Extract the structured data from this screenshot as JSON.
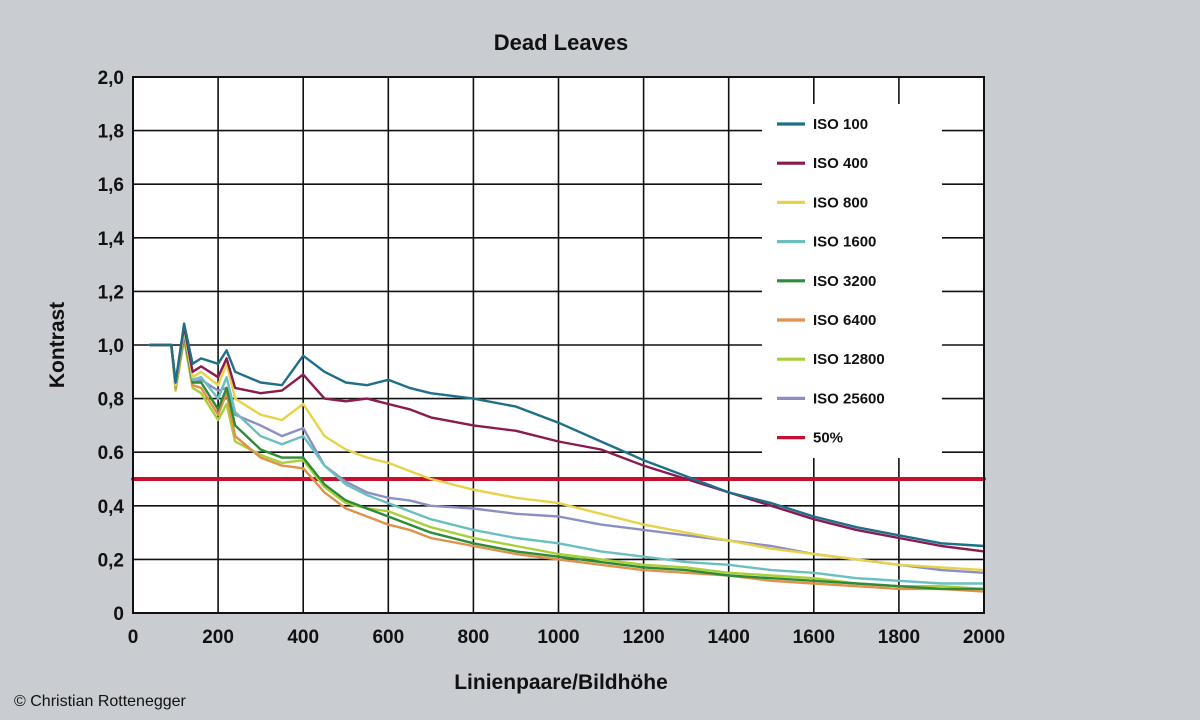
{
  "chart_data": {
    "type": "line",
    "title": "Dead Leaves",
    "xlabel": "Linienpaare/Bildhöhe",
    "ylabel": "Kontrast",
    "xlim": [
      0,
      2000
    ],
    "ylim": [
      0,
      2.0
    ],
    "x_ticks": [
      0,
      200,
      400,
      600,
      800,
      1000,
      1200,
      1400,
      1600,
      1800,
      2000
    ],
    "y_ticks": [
      0,
      0.2,
      0.4,
      0.6,
      0.8,
      1.0,
      1.2,
      1.4,
      1.6,
      1.8,
      2.0
    ],
    "x_tick_labels": [
      "0",
      "200",
      "400",
      "600",
      "800",
      "1000",
      "1200",
      "1400",
      "1600",
      "1800",
      "2000"
    ],
    "y_tick_labels": [
      "0",
      "0,2",
      "0,4",
      "0.6",
      "0,8",
      "1,0",
      "1,2",
      "1,4",
      "1,6",
      "1,8",
      "2,0"
    ],
    "grid": true,
    "legend_position": "top-right",
    "series": [
      {
        "name": "ISO 100",
        "color": "#1f6f8b",
        "x": [
          40,
          90,
          100,
          120,
          140,
          160,
          200,
          220,
          240,
          300,
          350,
          400,
          450,
          500,
          550,
          600,
          650,
          700,
          800,
          900,
          1000,
          1100,
          1200,
          1300,
          1400,
          1500,
          1600,
          1700,
          1800,
          1900,
          2000
        ],
        "y": [
          1.0,
          1.0,
          0.86,
          1.08,
          0.93,
          0.95,
          0.93,
          0.98,
          0.9,
          0.86,
          0.85,
          0.96,
          0.9,
          0.86,
          0.85,
          0.87,
          0.84,
          0.82,
          0.8,
          0.77,
          0.71,
          0.64,
          0.57,
          0.51,
          0.45,
          0.41,
          0.36,
          0.32,
          0.29,
          0.26,
          0.25
        ]
      },
      {
        "name": "ISO 400",
        "color": "#8b1a4f",
        "x": [
          40,
          90,
          100,
          120,
          140,
          160,
          200,
          220,
          240,
          300,
          350,
          400,
          450,
          500,
          550,
          600,
          650,
          700,
          800,
          900,
          1000,
          1100,
          1200,
          1300,
          1400,
          1500,
          1600,
          1700,
          1800,
          1900,
          2000
        ],
        "y": [
          1.0,
          1.0,
          0.86,
          1.07,
          0.9,
          0.92,
          0.88,
          0.95,
          0.84,
          0.82,
          0.83,
          0.89,
          0.8,
          0.79,
          0.8,
          0.78,
          0.76,
          0.73,
          0.7,
          0.68,
          0.64,
          0.61,
          0.55,
          0.5,
          0.45,
          0.4,
          0.35,
          0.31,
          0.28,
          0.25,
          0.23
        ]
      },
      {
        "name": "ISO 800",
        "color": "#e8d24a",
        "x": [
          40,
          90,
          100,
          120,
          140,
          160,
          200,
          220,
          240,
          300,
          350,
          400,
          450,
          500,
          550,
          600,
          650,
          700,
          800,
          900,
          1000,
          1100,
          1200,
          1300,
          1400,
          1500,
          1600,
          1700,
          1800,
          1900,
          2000
        ],
        "y": [
          1.0,
          1.0,
          0.85,
          1.06,
          0.88,
          0.9,
          0.85,
          0.93,
          0.8,
          0.74,
          0.72,
          0.78,
          0.66,
          0.61,
          0.58,
          0.56,
          0.53,
          0.5,
          0.46,
          0.43,
          0.41,
          0.37,
          0.33,
          0.3,
          0.27,
          0.24,
          0.22,
          0.2,
          0.18,
          0.17,
          0.16
        ]
      },
      {
        "name": "ISO 1600",
        "color": "#6bbfc0",
        "x": [
          40,
          90,
          100,
          120,
          140,
          160,
          200,
          220,
          240,
          300,
          350,
          400,
          450,
          500,
          550,
          600,
          650,
          700,
          800,
          900,
          1000,
          1100,
          1200,
          1300,
          1400,
          1500,
          1600,
          1700,
          1800,
          1900,
          2000
        ],
        "y": [
          1.0,
          1.0,
          0.85,
          1.05,
          0.87,
          0.88,
          0.8,
          0.88,
          0.75,
          0.66,
          0.63,
          0.66,
          0.55,
          0.48,
          0.44,
          0.41,
          0.38,
          0.35,
          0.31,
          0.28,
          0.26,
          0.23,
          0.21,
          0.19,
          0.18,
          0.16,
          0.15,
          0.13,
          0.12,
          0.11,
          0.11
        ]
      },
      {
        "name": "ISO 3200",
        "color": "#2e8b3a",
        "x": [
          40,
          90,
          100,
          120,
          140,
          160,
          200,
          220,
          240,
          300,
          350,
          400,
          450,
          500,
          550,
          600,
          650,
          700,
          800,
          900,
          1000,
          1100,
          1200,
          1300,
          1400,
          1500,
          1600,
          1700,
          1800,
          1900,
          2000
        ],
        "y": [
          1.0,
          1.0,
          0.85,
          1.04,
          0.86,
          0.86,
          0.76,
          0.84,
          0.7,
          0.61,
          0.58,
          0.58,
          0.48,
          0.42,
          0.39,
          0.36,
          0.33,
          0.3,
          0.26,
          0.23,
          0.21,
          0.19,
          0.17,
          0.16,
          0.14,
          0.13,
          0.12,
          0.11,
          0.1,
          0.09,
          0.09
        ]
      },
      {
        "name": "ISO 6400",
        "color": "#e0914a",
        "x": [
          40,
          90,
          100,
          120,
          140,
          160,
          200,
          220,
          240,
          300,
          350,
          400,
          450,
          500,
          550,
          600,
          650,
          700,
          800,
          900,
          1000,
          1100,
          1200,
          1300,
          1400,
          1500,
          1600,
          1700,
          1800,
          1900,
          2000
        ],
        "y": [
          1.0,
          1.0,
          0.84,
          1.03,
          0.85,
          0.84,
          0.74,
          0.82,
          0.66,
          0.58,
          0.55,
          0.54,
          0.45,
          0.39,
          0.36,
          0.33,
          0.31,
          0.28,
          0.25,
          0.22,
          0.2,
          0.18,
          0.16,
          0.15,
          0.14,
          0.12,
          0.11,
          0.1,
          0.09,
          0.09,
          0.08
        ]
      },
      {
        "name": "ISO 12800",
        "color": "#a9cf38",
        "x": [
          40,
          90,
          100,
          120,
          140,
          160,
          200,
          220,
          240,
          300,
          350,
          400,
          450,
          500,
          550,
          600,
          650,
          700,
          800,
          900,
          1000,
          1100,
          1200,
          1300,
          1400,
          1500,
          1600,
          1700,
          1800,
          1900,
          2000
        ],
        "y": [
          1.0,
          1.0,
          0.83,
          1.02,
          0.84,
          0.82,
          0.72,
          0.78,
          0.64,
          0.59,
          0.56,
          0.57,
          0.47,
          0.41,
          0.39,
          0.38,
          0.35,
          0.32,
          0.28,
          0.25,
          0.22,
          0.2,
          0.18,
          0.17,
          0.15,
          0.14,
          0.13,
          0.11,
          0.1,
          0.1,
          0.09
        ]
      },
      {
        "name": "ISO 25600",
        "color": "#8a8fc4",
        "x": [
          40,
          90,
          100,
          120,
          140,
          160,
          200,
          220,
          240,
          300,
          350,
          400,
          450,
          500,
          550,
          600,
          650,
          700,
          800,
          900,
          1000,
          1100,
          1200,
          1300,
          1400,
          1500,
          1600,
          1700,
          1800,
          1900,
          2000
        ],
        "y": [
          1.0,
          1.0,
          0.84,
          1.04,
          0.86,
          0.87,
          0.83,
          0.84,
          0.74,
          0.7,
          0.66,
          0.69,
          0.55,
          0.49,
          0.45,
          0.43,
          0.42,
          0.4,
          0.39,
          0.37,
          0.36,
          0.33,
          0.31,
          0.29,
          0.27,
          0.25,
          0.22,
          0.2,
          0.18,
          0.16,
          0.15
        ]
      },
      {
        "name": "50%",
        "color": "#c8102e",
        "x": [
          0,
          2000
        ],
        "y": [
          0.5,
          0.5
        ]
      }
    ]
  },
  "credit": "© Christian Rottenegger"
}
